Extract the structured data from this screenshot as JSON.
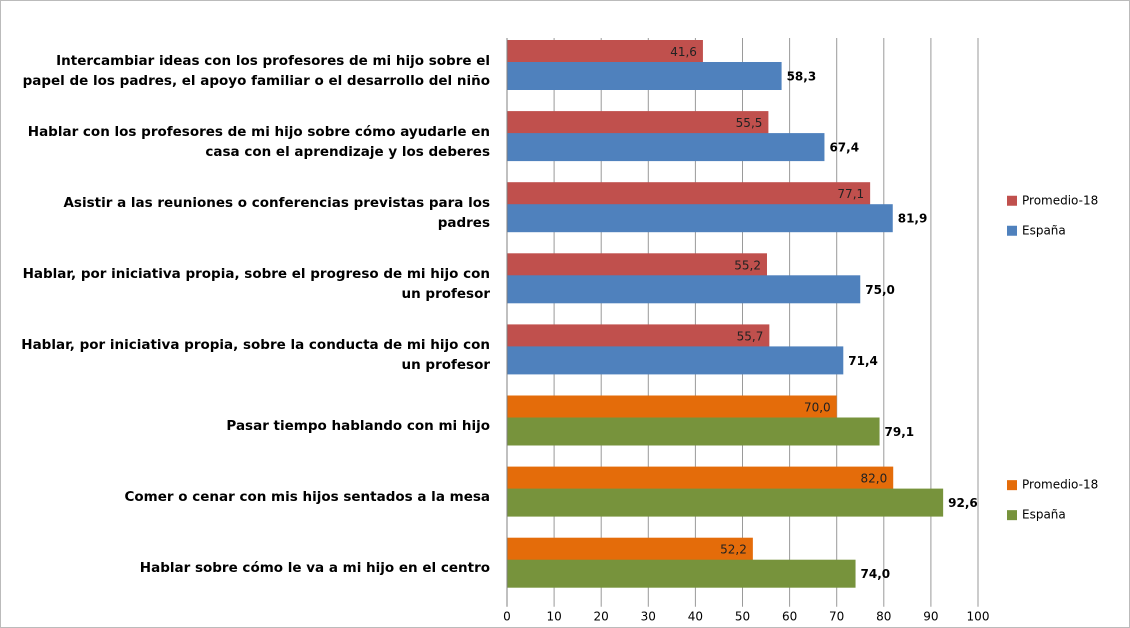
{
  "chart_data": [
    {
      "type": "bar",
      "orientation": "horizontal",
      "categories": [
        "Intercambiar ideas con los profesores de mi hijo sobre el papel de los padres, el apoyo familiar o el desarrollo del niño",
        "Hablar con los profesores de mi hijo sobre cómo ayudarle en casa con el aprendizaje y los deberes",
        "Asistir a las reuniones o conferencias previstas para los padres",
        "Hablar, por iniciativa propia, sobre el progreso de mi hijo con un profesor",
        "Hablar, por iniciativa propia, sobre la conducta de mi hijo con un profesor"
      ],
      "series": [
        {
          "name": "Promedio-18",
          "color": "#c0504d",
          "values": [
            41.6,
            55.5,
            77.1,
            55.2,
            55.7
          ],
          "value_labels": [
            "41,6",
            "55,5",
            "77,1",
            "55,2",
            "55,7"
          ]
        },
        {
          "name": "España",
          "color": "#4f81bd",
          "values": [
            58.3,
            67.4,
            81.9,
            75.0,
            71.4
          ],
          "value_labels": [
            "58,3",
            "67,4",
            "81,9",
            "75,0",
            "71,4"
          ]
        }
      ],
      "xlim": [
        0,
        100
      ],
      "xticks": [
        0,
        10,
        20,
        30,
        40,
        50,
        60,
        70,
        80,
        90,
        100
      ],
      "grid": true,
      "legend": "right"
    },
    {
      "type": "bar",
      "orientation": "horizontal",
      "categories": [
        "Pasar tiempo hablando con mi hijo",
        "Comer o cenar con mis hijos sentados a la mesa",
        "Hablar sobre cómo le va a mi hijo en el centro"
      ],
      "series": [
        {
          "name": "Promedio-18",
          "color": "#e46c0a",
          "values": [
            70.0,
            82.0,
            52.2
          ],
          "value_labels": [
            "70,0",
            "82,0",
            "52,2"
          ]
        },
        {
          "name": "España",
          "color": "#77933c",
          "values": [
            79.1,
            92.6,
            74.0
          ],
          "value_labels": [
            "79,1",
            "92,6",
            "74,0"
          ]
        }
      ],
      "xlim": [
        0,
        100
      ],
      "xticks": [
        0,
        10,
        20,
        30,
        40,
        50,
        60,
        70,
        80,
        90,
        100
      ],
      "grid": true,
      "legend": "right"
    }
  ]
}
